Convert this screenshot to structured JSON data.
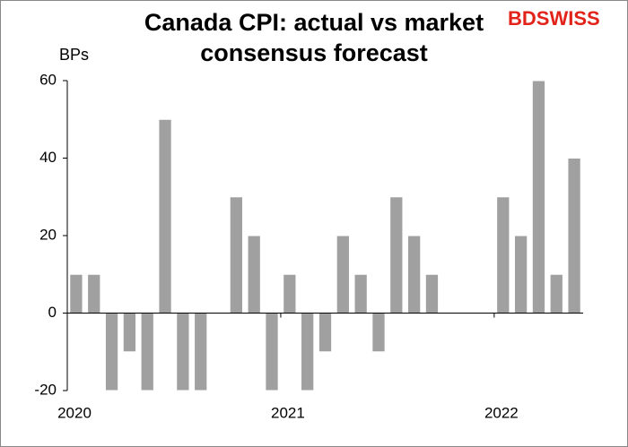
{
  "chart_data": {
    "type": "bar",
    "title_lines": [
      "Canada CPI: actual vs market",
      "consensus forecast"
    ],
    "ylabel": "BPs",
    "logo": "BDSWISS",
    "categories": [
      "2020",
      null,
      null,
      null,
      null,
      null,
      null,
      null,
      null,
      null,
      null,
      null,
      "2021",
      null,
      null,
      null,
      null,
      null,
      null,
      null,
      null,
      null,
      null,
      null,
      "2022",
      null,
      null,
      null,
      null
    ],
    "values": [
      10,
      10,
      -20,
      -10,
      -20,
      50,
      -20,
      -20,
      0,
      30,
      20,
      -20,
      10,
      -20,
      -10,
      20,
      10,
      -10,
      30,
      20,
      10,
      0,
      0,
      0,
      30,
      20,
      60,
      10,
      40
    ],
    "color": "#a0a0a0",
    "ylim": [
      -20,
      60
    ],
    "yticks": [
      -20,
      0,
      20,
      40,
      60
    ],
    "grid": false
  }
}
